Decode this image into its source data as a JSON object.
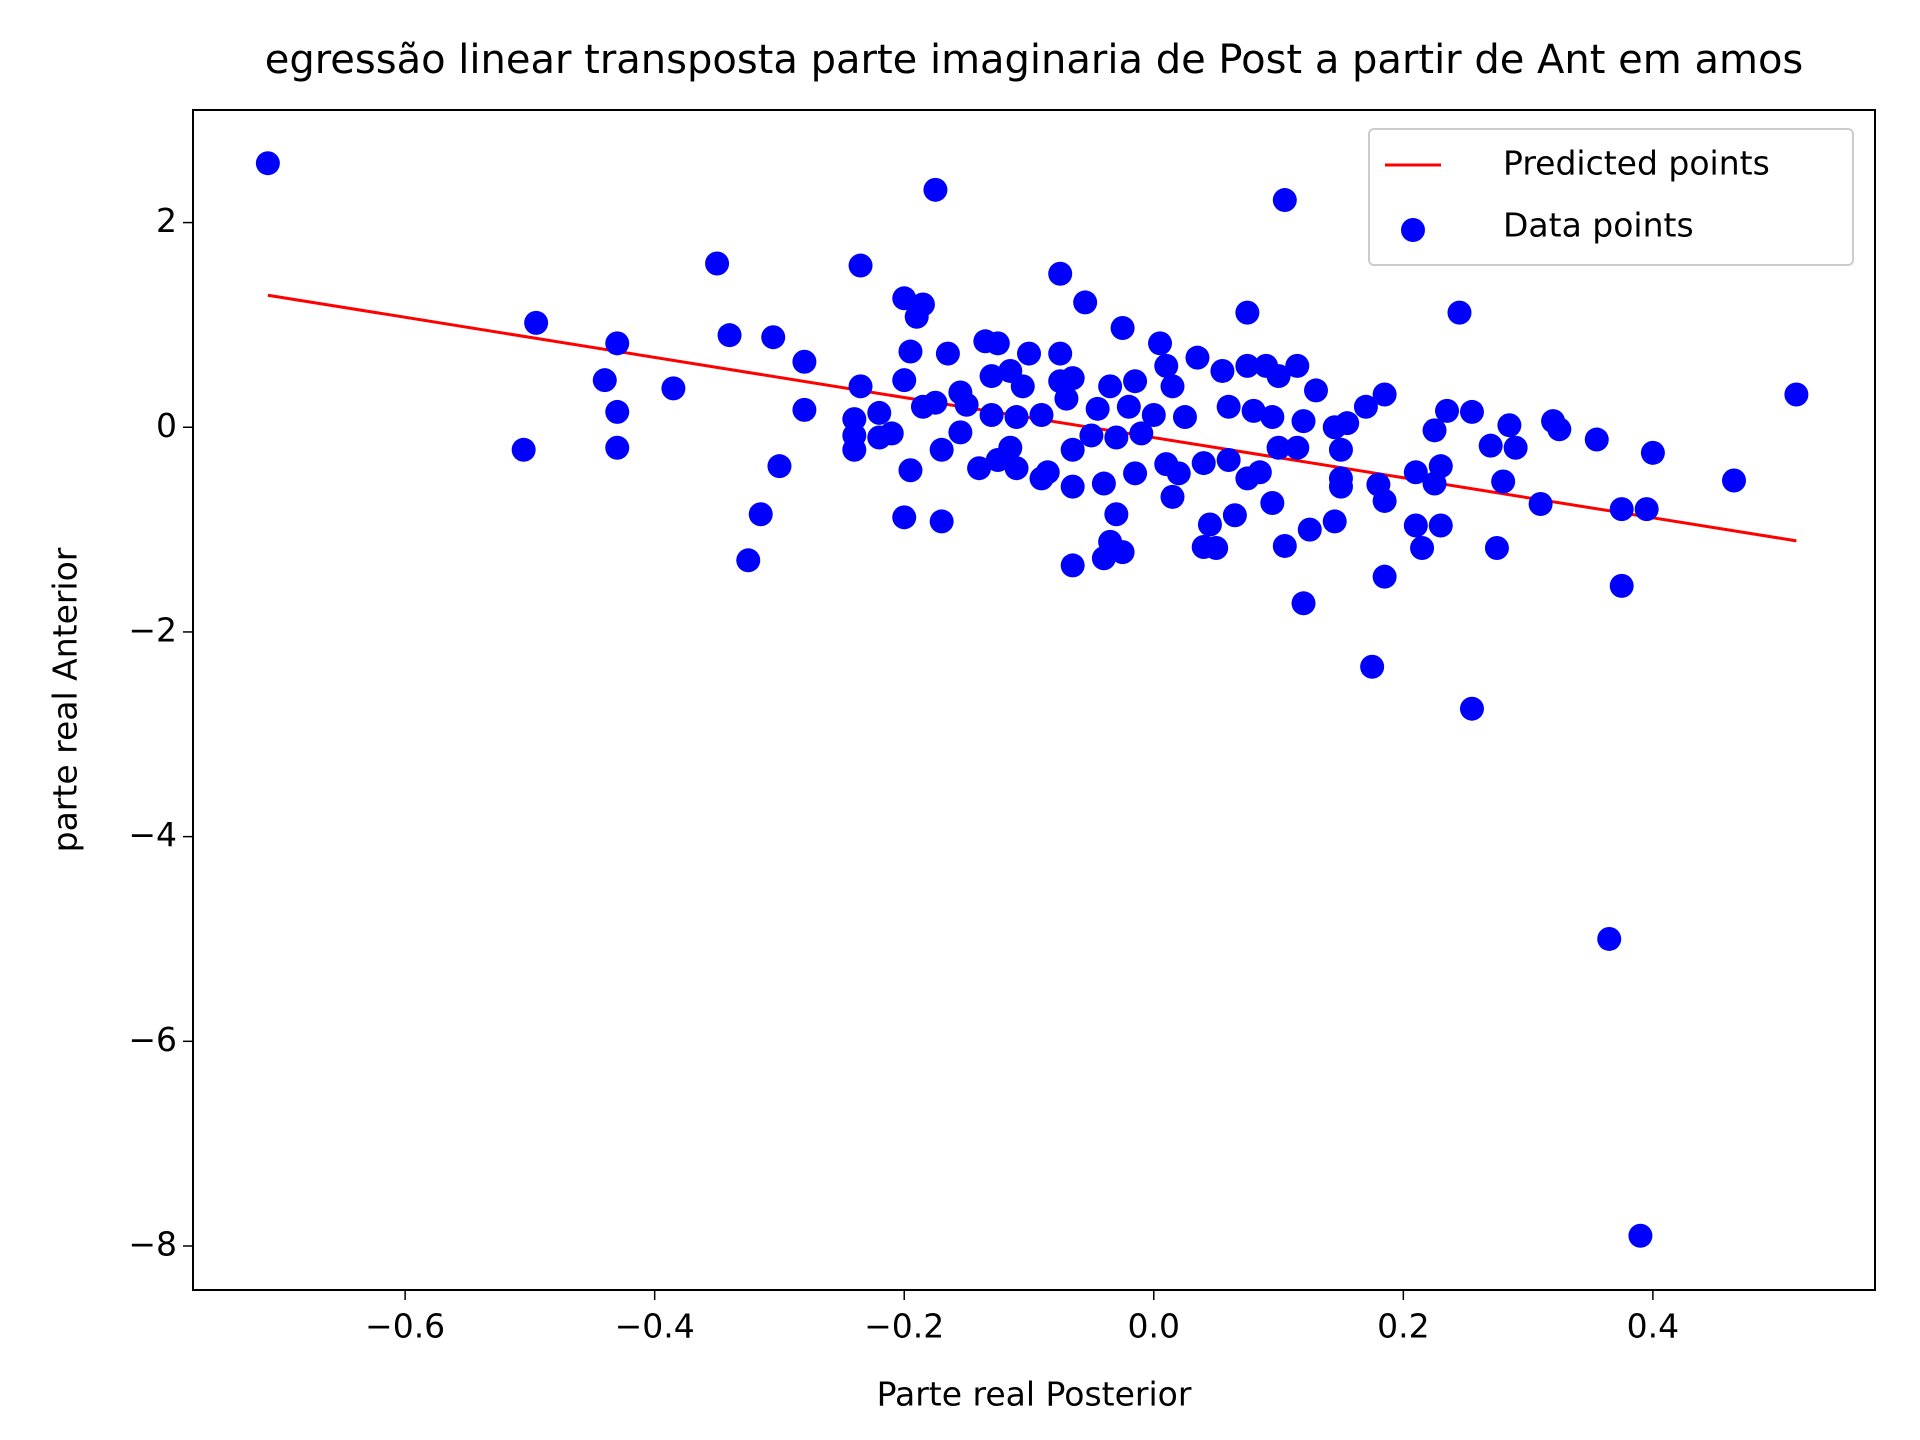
{
  "chart_data": {
    "type": "scatter",
    "title": "egressão linear transposta parte imaginaria de Post a partir de Ant em amos",
    "x_label": "Parte real Posterior",
    "y_label": "parte real Anterior",
    "xlim": [
      -0.77,
      0.578
    ],
    "ylim": [
      -8.43,
      3.1
    ],
    "xticks": [
      {
        "value": -0.6,
        "label": "−0.6"
      },
      {
        "value": -0.4,
        "label": "−0.4"
      },
      {
        "value": -0.2,
        "label": "−0.2"
      },
      {
        "value": 0,
        "label": "0.0"
      },
      {
        "value": 0.2,
        "label": "0.2"
      },
      {
        "value": 0.4,
        "label": "0.4"
      }
    ],
    "yticks": [
      2,
      0,
      {
        "value": -2,
        "label": "−2"
      },
      {
        "value": -4,
        "label": "−4"
      },
      {
        "value": -6,
        "label": "−6"
      },
      {
        "value": -8,
        "label": "−8"
      }
    ],
    "grid": false,
    "legend": "upper right",
    "series": [
      {
        "name": "Predicted points",
        "type": "line",
        "color": "#ff0000",
        "x": [
          -0.71,
          0.515
        ],
        "values": [
          1.29,
          -1.11
        ]
      },
      {
        "name": "Data points",
        "type": "scatter",
        "color": "#0000ff",
        "x": [
          -0.71,
          -0.175,
          0.105,
          -0.35,
          -0.235,
          -0.075,
          -0.2,
          -0.185,
          -0.19,
          -0.055,
          0.075,
          0.245,
          -0.495,
          -0.34,
          -0.305,
          -0.43,
          -0.025,
          -0.135,
          -0.125,
          -0.195,
          -0.165,
          -0.1,
          -0.075,
          0.005,
          0.035,
          -0.28,
          -0.44,
          -0.385,
          -0.235,
          -0.2,
          -0.155,
          -0.13,
          -0.115,
          -0.105,
          -0.075,
          -0.065,
          -0.035,
          -0.015,
          0.01,
          0.015,
          0.055,
          0.075,
          0.09,
          0.115,
          0.13,
          0.1,
          -0.43,
          -0.28,
          -0.24,
          -0.22,
          -0.185,
          -0.175,
          -0.15,
          -0.13,
          -0.11,
          -0.09,
          -0.07,
          -0.045,
          -0.02,
          0.0,
          0.025,
          0.06,
          0.08,
          0.095,
          0.12,
          0.145,
          0.155,
          0.17,
          0.185,
          0.235,
          0.255,
          0.285,
          0.32,
          0.325,
          0.515,
          -0.505,
          -0.43,
          -0.24,
          -0.24,
          -0.22,
          -0.21,
          -0.17,
          -0.155,
          -0.14,
          -0.125,
          -0.115,
          -0.11,
          -0.09,
          -0.085,
          -0.065,
          -0.05,
          -0.03,
          -0.01,
          0.01,
          0.02,
          0.04,
          0.06,
          0.075,
          0.085,
          0.1,
          0.115,
          0.15,
          0.15,
          0.15,
          0.18,
          0.185,
          0.21,
          0.225,
          0.225,
          0.23,
          0.27,
          0.28,
          0.29,
          0.31,
          0.355,
          0.375,
          0.395,
          0.4,
          0.465,
          -0.3,
          -0.315,
          -0.325,
          -0.195,
          -0.2,
          -0.17,
          -0.065,
          -0.04,
          -0.03,
          -0.015,
          0.015,
          0.045,
          0.065,
          0.095,
          0.105,
          0.125,
          0.145,
          0.21,
          0.215,
          0.23,
          0.275,
          -0.065,
          -0.04,
          -0.035,
          -0.025,
          0.04,
          0.05,
          0.12,
          0.185,
          0.375,
          0.175,
          0.255,
          0.365,
          0.39
        ],
        "values": [
          2.58,
          2.32,
          2.22,
          1.6,
          1.58,
          1.5,
          1.26,
          1.2,
          1.08,
          1.22,
          1.12,
          1.12,
          1.02,
          0.9,
          0.88,
          0.82,
          0.97,
          0.84,
          0.82,
          0.74,
          0.72,
          0.72,
          0.72,
          0.82,
          0.68,
          0.64,
          0.46,
          0.38,
          0.4,
          0.46,
          0.34,
          0.5,
          0.55,
          0.4,
          0.45,
          0.48,
          0.4,
          0.45,
          0.6,
          0.4,
          0.55,
          0.6,
          0.6,
          0.6,
          0.36,
          0.5,
          0.15,
          0.17,
          0.08,
          0.14,
          0.2,
          0.24,
          0.22,
          0.12,
          0.1,
          0.12,
          0.28,
          0.18,
          0.2,
          0.12,
          0.1,
          0.2,
          0.16,
          0.1,
          0.06,
          0.0,
          0.04,
          0.2,
          0.32,
          0.16,
          0.15,
          0.02,
          0.06,
          -0.02,
          0.32,
          -0.22,
          -0.2,
          -0.22,
          -0.08,
          -0.1,
          -0.06,
          -0.22,
          -0.05,
          -0.4,
          -0.32,
          -0.2,
          -0.4,
          -0.5,
          -0.44,
          -0.22,
          -0.08,
          -0.1,
          -0.06,
          -0.36,
          -0.45,
          -0.35,
          -0.32,
          -0.5,
          -0.44,
          -0.2,
          -0.2,
          -0.22,
          -0.5,
          -0.58,
          -0.56,
          -0.72,
          -0.44,
          -0.03,
          -0.55,
          -0.38,
          -0.18,
          -0.53,
          -0.2,
          -0.75,
          -0.12,
          -0.8,
          -0.8,
          -0.25,
          -0.52,
          -0.38,
          -0.85,
          -1.3,
          -0.42,
          -0.88,
          -0.92,
          -0.58,
          -0.55,
          -0.85,
          -0.45,
          -0.68,
          -0.95,
          -0.86,
          -0.74,
          -1.16,
          -1.0,
          -0.92,
          -0.96,
          -1.18,
          -0.96,
          -1.18,
          -1.35,
          -1.28,
          -1.12,
          -1.22,
          -1.17,
          -1.18,
          -1.72,
          -1.46,
          -1.55,
          -2.34,
          -2.75,
          -5.0,
          -7.9
        ]
      }
    ]
  }
}
